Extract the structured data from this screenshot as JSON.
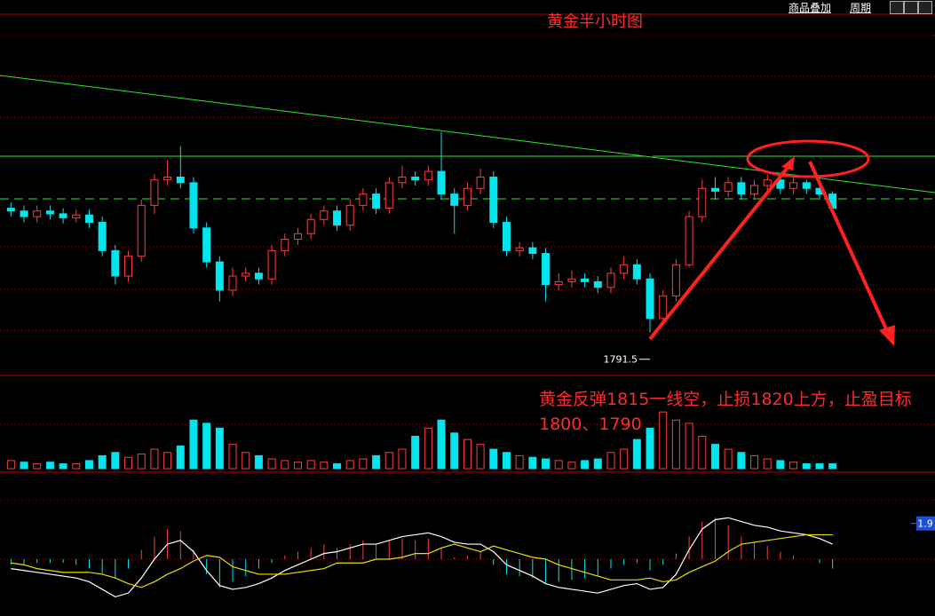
{
  "header": {
    "title": "黄金半小时图",
    "menu": [
      "商品叠加",
      "周期"
    ]
  },
  "chart_data": [
    {
      "type": "candlestick",
      "up_color": "#ff3c3c",
      "down_color": "#00e5ee",
      "ylim": [
        1784.4,
        1850.3
      ],
      "low_label": 1791.5,
      "annotation": "黄金反弹1815一线空，止损1820上方，止盈目标1800、1790",
      "open": [
        1813.5,
        1813,
        1812,
        1813,
        1812.5,
        1811.8,
        1812.3,
        1811,
        1806,
        1801.5,
        1805,
        1814,
        1818.5,
        1819,
        1818,
        1810,
        1804,
        1799,
        1801.5,
        1802,
        1801,
        1806,
        1808,
        1809,
        1811.5,
        1813,
        1810.5,
        1814,
        1816,
        1813.5,
        1818,
        1819,
        1818.5,
        1820,
        1816,
        1814,
        1817,
        1819,
        1811,
        1806,
        1806.5,
        1805.5,
        1800,
        1800.5,
        1801,
        1800.5,
        1799.5,
        1802,
        1803.5,
        1801,
        1794,
        1798,
        1803.5,
        1812,
        1817,
        1816.5,
        1818,
        1816,
        1817.5,
        1818.5,
        1817,
        1818,
        1817,
        1816
      ],
      "high": [
        1814.5,
        1814,
        1814,
        1814,
        1813.5,
        1813.3,
        1813.3,
        1812,
        1807,
        1806,
        1815,
        1819.5,
        1822,
        1824.5,
        1819,
        1811,
        1805,
        1803,
        1803,
        1803,
        1807,
        1809,
        1810,
        1812.5,
        1814,
        1814,
        1815,
        1817,
        1817,
        1819,
        1821,
        1820,
        1821,
        1827,
        1817,
        1818,
        1820.5,
        1820,
        1812,
        1807.5,
        1807.5,
        1806.5,
        1802,
        1802.5,
        1802,
        1801.5,
        1803,
        1805,
        1804.5,
        1802,
        1799,
        1804.5,
        1813,
        1818.5,
        1819,
        1819,
        1819,
        1818.5,
        1819.5,
        1819.5,
        1819,
        1818.5,
        1818,
        1816.5
      ],
      "low": [
        1812,
        1811,
        1811,
        1811.5,
        1810.8,
        1811,
        1810,
        1805,
        1800,
        1800.5,
        1804,
        1812.5,
        1817.5,
        1817,
        1809,
        1803,
        1797,
        1798,
        1800.5,
        1800,
        1800,
        1805,
        1807,
        1808,
        1810.5,
        1809.5,
        1809.5,
        1813,
        1812.5,
        1812.5,
        1817,
        1817.5,
        1817.5,
        1815,
        1809,
        1813,
        1816,
        1810,
        1805,
        1805,
        1804.5,
        1797,
        1799,
        1799.5,
        1799.5,
        1798.5,
        1798.5,
        1801,
        1800,
        1791.5,
        1793,
        1797,
        1803,
        1811,
        1815,
        1815.5,
        1815,
        1815,
        1816,
        1816,
        1816,
        1816,
        1815,
        1812.5
      ],
      "close": [
        1813,
        1812,
        1813,
        1812.5,
        1811.8,
        1812.3,
        1811,
        1806,
        1801.5,
        1805,
        1814,
        1818.5,
        1819,
        1818,
        1810,
        1804,
        1799,
        1801.5,
        1802,
        1801,
        1806,
        1808,
        1809,
        1811.5,
        1813,
        1810.5,
        1814,
        1816,
        1813.5,
        1818,
        1819,
        1818.5,
        1820,
        1816,
        1814,
        1817,
        1819,
        1811,
        1806,
        1806.5,
        1805.5,
        1800,
        1800.5,
        1801,
        1800.5,
        1799.5,
        1802,
        1803.5,
        1801,
        1794,
        1798,
        1803.5,
        1812,
        1817,
        1816.5,
        1818,
        1816,
        1817.5,
        1818.5,
        1817,
        1818,
        1817,
        1816,
        1813.5
      ]
    },
    {
      "type": "bar",
      "ylim": [
        0,
        40
      ],
      "values": [
        5,
        4,
        3,
        4,
        3,
        3,
        5,
        8,
        10,
        7,
        9,
        12,
        10,
        14,
        30,
        28,
        25,
        15,
        10,
        8,
        6,
        5,
        4,
        5,
        4,
        3,
        5,
        6,
        8,
        10,
        12,
        20,
        25,
        30,
        22,
        18,
        15,
        12,
        10,
        8,
        7,
        6,
        5,
        4,
        5,
        6,
        10,
        12,
        18,
        25,
        35,
        30,
        28,
        20,
        15,
        12,
        10,
        8,
        6,
        5,
        4,
        3,
        3,
        3
      ]
    },
    {
      "type": "macd",
      "ylim": [
        -2.5,
        2.5
      ],
      "yticks": [
        1.9
      ],
      "histogram": [
        -0.3,
        -0.3,
        -0.2,
        -0.2,
        -0.2,
        -0.3,
        -0.5,
        -0.8,
        -1.0,
        -0.5,
        0.5,
        1.2,
        1.6,
        1.5,
        0.5,
        -0.8,
        -1.5,
        -1.2,
        -0.9,
        -0.5,
        -0.2,
        0.2,
        0.4,
        0.6,
        0.8,
        0.6,
        0.8,
        1.0,
        0.8,
        1.0,
        1.1,
        1.0,
        1.1,
        0.6,
        0.1,
        0.2,
        0.4,
        -0.3,
        -0.8,
        -0.9,
        -1.0,
        -1.3,
        -1.2,
        -1.1,
        -1.0,
        -0.9,
        -0.5,
        -0.3,
        -0.2,
        -0.6,
        -0.3,
        0.3,
        1.2,
        2.0,
        2.2,
        1.8,
        1.2,
        0.9,
        0.7,
        0.4,
        0.2,
        0.0,
        -0.2,
        -0.5
      ],
      "dif": [
        -0.5,
        -0.6,
        -0.7,
        -0.8,
        -0.9,
        -1.0,
        -1.2,
        -1.6,
        -2.0,
        -1.8,
        -1.0,
        0.0,
        0.8,
        1.0,
        0.4,
        -0.6,
        -1.4,
        -1.6,
        -1.5,
        -1.3,
        -1.0,
        -0.6,
        -0.3,
        0.0,
        0.3,
        0.4,
        0.6,
        0.8,
        0.8,
        1.0,
        1.2,
        1.3,
        1.4,
        1.2,
        0.9,
        0.8,
        0.8,
        0.4,
        -0.3,
        -0.6,
        -0.9,
        -1.3,
        -1.5,
        -1.6,
        -1.7,
        -1.8,
        -1.6,
        -1.4,
        -1.3,
        -1.6,
        -1.5,
        -0.8,
        0.5,
        1.6,
        2.1,
        2.2,
        2.0,
        1.8,
        1.7,
        1.5,
        1.4,
        1.3,
        1.1,
        0.8
      ],
      "dea": [
        -0.2,
        -0.3,
        -0.5,
        -0.6,
        -0.7,
        -0.7,
        -0.7,
        -0.8,
        -1.0,
        -1.3,
        -1.5,
        -1.2,
        -0.8,
        -0.5,
        -0.1,
        0.2,
        0.1,
        -0.4,
        -0.6,
        -0.8,
        -0.8,
        -0.8,
        -0.7,
        -0.6,
        -0.5,
        -0.2,
        -0.2,
        -0.2,
        0.0,
        0.0,
        0.1,
        0.3,
        0.3,
        0.6,
        0.8,
        0.6,
        0.4,
        0.7,
        0.5,
        0.3,
        0.1,
        0.0,
        -0.3,
        -0.5,
        -0.7,
        -0.9,
        -1.1,
        -1.1,
        -1.1,
        -1.0,
        -1.2,
        -1.1,
        -0.7,
        -0.4,
        -0.1,
        0.4,
        0.8,
        0.9,
        1.0,
        1.1,
        1.2,
        1.3,
        1.3,
        1.3
      ]
    }
  ]
}
